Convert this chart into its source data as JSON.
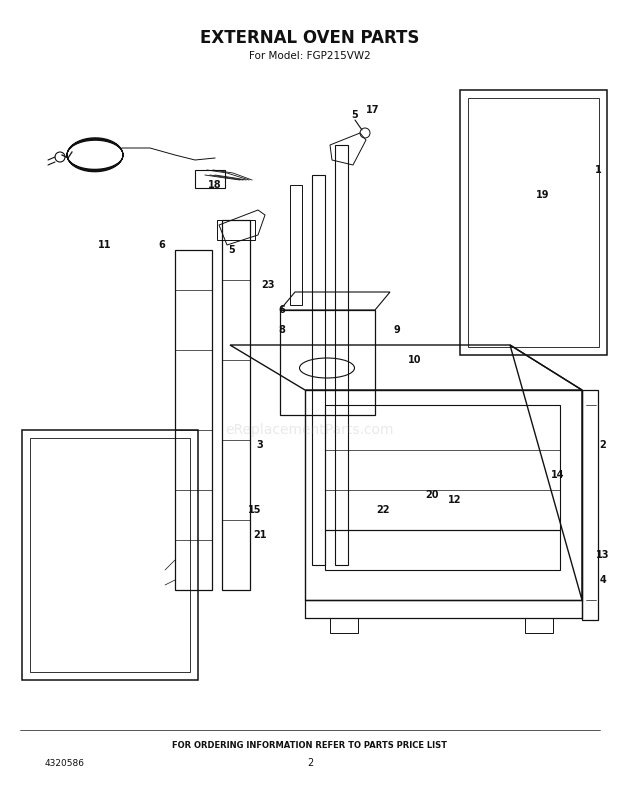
{
  "title": "EXTERNAL OVEN PARTS",
  "subtitle": "For Model: FGP215VW2",
  "footer_text": "FOR ORDERING INFORMATION REFER TO PARTS PRICE LIST",
  "part_number": "4320586",
  "page_number": "2",
  "bg_color": "#ffffff",
  "title_color": "#111111",
  "text_color": "#111111",
  "lc": "#111111",
  "title_fontsize": 12,
  "subtitle_fontsize": 7.5,
  "footer_fontsize": 6,
  "watermark": "eReplacementParts.com",
  "watermark_alpha": 0.18
}
